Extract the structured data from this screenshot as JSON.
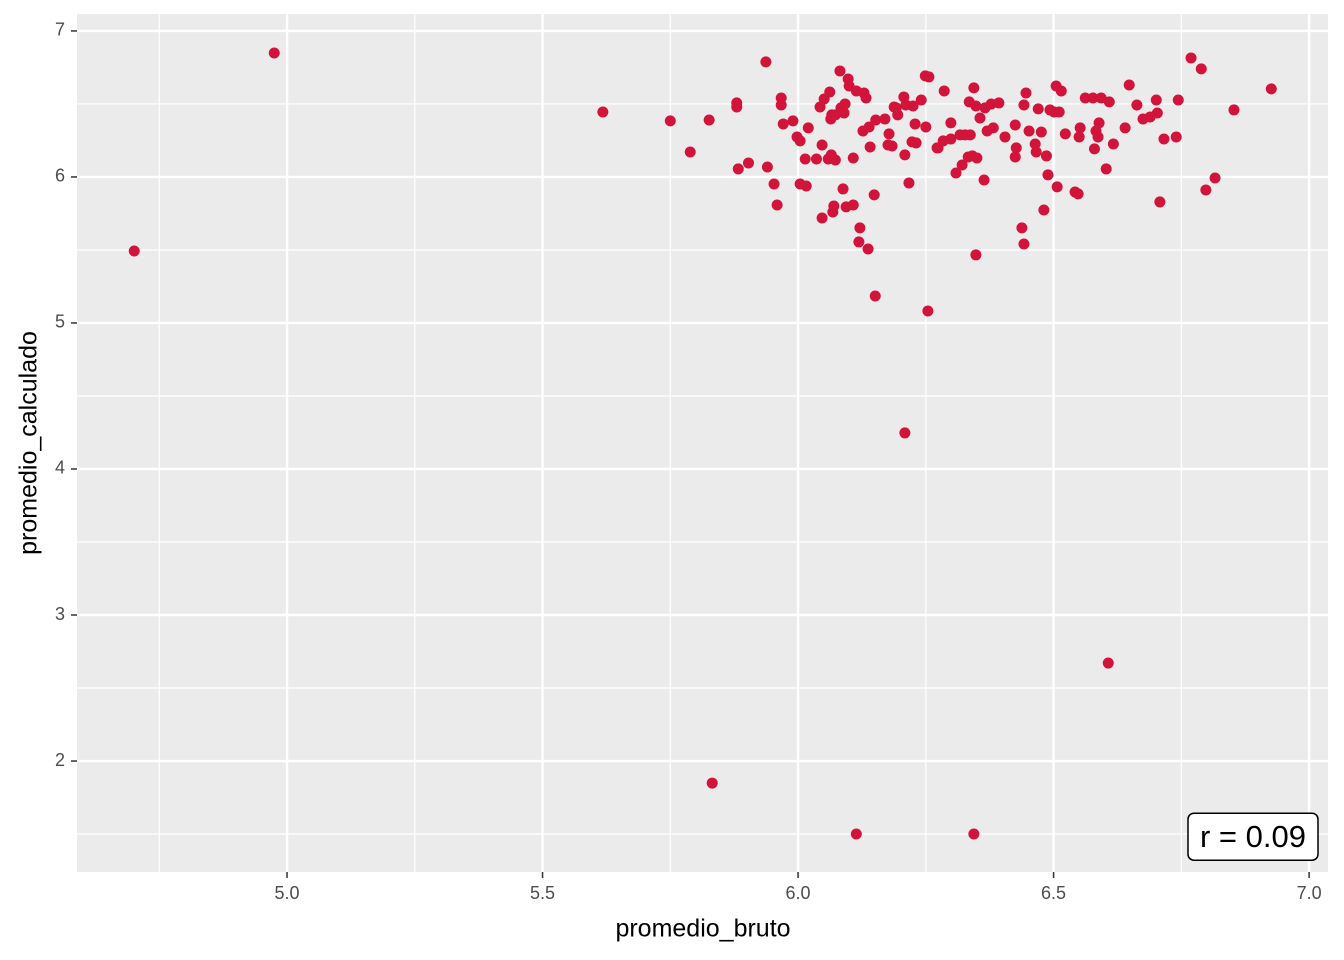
{
  "chart_data": {
    "type": "scatter",
    "x_label": "promedio_bruto",
    "y_label": "promedio_calculado",
    "annotation": "r = 0.09",
    "color": "#d2143a",
    "grid": true,
    "xlim": [
      4.589,
      7.037
    ],
    "ylim": [
      1.24,
      7.116
    ],
    "xticks": [
      {
        "value": 5,
        "label": "5.0"
      },
      5.5,
      {
        "value": 6,
        "label": "6.0"
      },
      6.5,
      {
        "value": 7,
        "label": "7.0"
      }
    ],
    "yticks": [
      2,
      3,
      4,
      5,
      6,
      7
    ],
    "x": [
      4.701,
      4.975,
      5.618,
      5.75,
      5.789,
      5.826,
      5.832,
      6.114,
      6.344,
      6.607,
      6.209,
      6.254,
      6.151,
      6.348,
      6.137,
      6.119,
      6.121,
      6.442,
      6.438,
      6.481,
      6.047,
      6.068,
      6.07,
      6.094,
      6.108,
      5.959,
      6.149,
      6.088,
      6.004,
      6.016,
      5.953,
      6.217,
      6.364,
      6.309,
      6.489,
      6.507,
      6.542,
      6.548,
      6.603,
      6.708,
      6.798,
      6.816,
      5.883,
      5.903,
      5.94,
      6.014,
      6.036,
      6.059,
      6.073,
      6.108,
      6.065,
      6.047,
      6.141,
      6.209,
      6.223,
      6.231,
      6.176,
      6.274,
      6.321,
      6.333,
      6.35,
      6.341,
      6.425,
      6.427,
      6.464,
      6.466,
      6.486,
      6.58,
      6.617,
      6.523,
      6.55,
      6.587,
      6.64,
      6.675,
      6.689,
      6.716,
      6.74,
      6.703,
      6.744,
      6.701,
      6.663,
      6.648,
      6.769,
      6.789,
      6.853,
      6.926,
      6.562,
      6.577,
      6.593,
      6.609,
      6.589,
      6.583,
      6.552,
      6.505,
      6.515,
      6.501,
      6.511,
      6.493,
      6.47,
      6.446,
      6.442,
      6.452,
      6.425,
      6.476,
      6.405,
      6.393,
      6.378,
      6.366,
      6.382,
      6.356,
      6.37,
      6.344,
      6.335,
      6.348,
      6.327,
      6.337,
      6.317,
      6.299,
      6.299,
      6.284,
      6.272,
      6.286,
      6.249,
      6.256,
      6.241,
      6.25,
      6.229,
      6.225,
      6.211,
      6.207,
      6.188,
      6.195,
      6.192,
      6.17,
      6.178,
      6.184,
      6.152,
      6.133,
      6.129,
      6.114,
      6.1,
      6.098,
      6.082,
      6.092,
      6.09,
      6.064,
      6.066,
      6.084,
      6.062,
      6.051,
      6.043,
      6.073,
      6.127,
      6.139,
      6.02,
      5.998,
      6.004,
      5.99,
      5.971,
      5.967,
      5.967,
      5.88,
      5.88,
      5.937
    ],
    "y": [
      5.493,
      6.849,
      6.445,
      6.384,
      6.171,
      6.39,
      1.849,
      1.5,
      1.5,
      2.671,
      4.247,
      5.082,
      5.185,
      5.466,
      5.507,
      5.555,
      5.651,
      5.541,
      5.651,
      5.774,
      5.719,
      5.76,
      5.801,
      5.795,
      5.808,
      5.808,
      5.877,
      5.918,
      5.952,
      5.938,
      5.952,
      5.959,
      5.979,
      6.027,
      6.014,
      5.932,
      5.897,
      5.884,
      6.055,
      5.829,
      5.911,
      5.993,
      6.055,
      6.096,
      6.068,
      6.123,
      6.123,
      6.123,
      6.116,
      6.13,
      6.151,
      6.219,
      6.205,
      6.151,
      6.24,
      6.233,
      6.219,
      6.199,
      6.082,
      6.137,
      6.13,
      6.144,
      6.137,
      6.199,
      6.226,
      6.171,
      6.144,
      6.192,
      6.226,
      6.295,
      6.274,
      6.274,
      6.336,
      6.397,
      6.411,
      6.26,
      6.274,
      6.438,
      6.527,
      6.527,
      6.493,
      6.63,
      6.815,
      6.74,
      6.459,
      6.603,
      6.541,
      6.541,
      6.541,
      6.514,
      6.37,
      6.315,
      6.336,
      6.623,
      6.589,
      6.445,
      6.445,
      6.459,
      6.466,
      6.575,
      6.493,
      6.315,
      6.356,
      6.308,
      6.274,
      6.507,
      6.5,
      6.473,
      6.336,
      6.404,
      6.315,
      6.61,
      6.514,
      6.486,
      6.288,
      6.288,
      6.288,
      6.37,
      6.26,
      6.247,
      6.199,
      6.589,
      6.692,
      6.685,
      6.527,
      6.342,
      6.363,
      6.486,
      6.493,
      6.548,
      6.479,
      6.425,
      6.473,
      6.397,
      6.295,
      6.212,
      6.39,
      6.541,
      6.575,
      6.589,
      6.623,
      6.671,
      6.726,
      6.5,
      6.438,
      6.397,
      6.425,
      6.473,
      6.582,
      6.534,
      6.479,
      6.425,
      6.315,
      6.342,
      6.336,
      6.274,
      6.247,
      6.384,
      6.363,
      6.493,
      6.541,
      6.507,
      6.479,
      6.788
    ]
  }
}
